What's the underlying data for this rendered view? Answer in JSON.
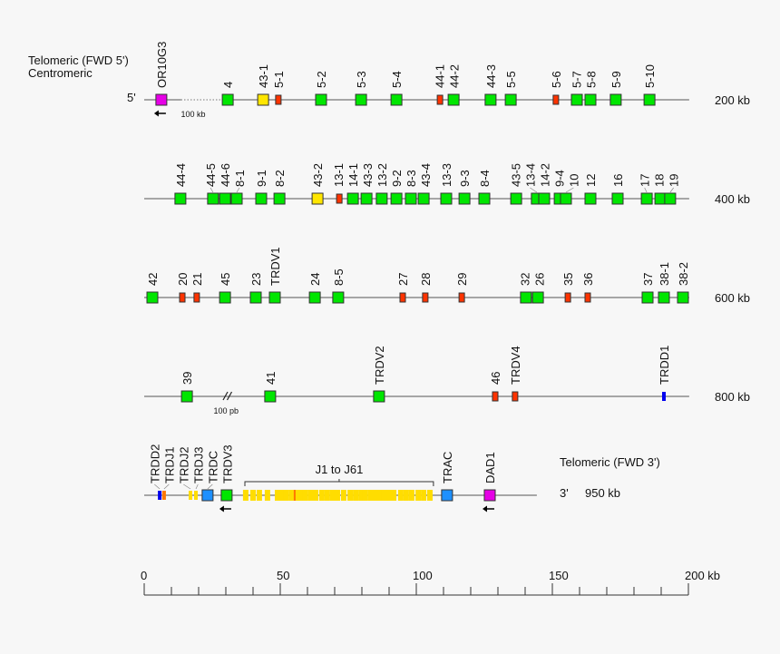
{
  "header": {
    "telomeric_5": "Telomeric (FWD 5')",
    "centromeric": "Centromeric",
    "five_prime": "5'"
  },
  "footer": {
    "telomeric_3": "Telomeric (FWD 3')",
    "three_prime": "3'",
    "end_kb": "950 kb"
  },
  "colors": {
    "V": "#00e600",
    "pseudo": "#ff3300",
    "orf": "#ffe600",
    "other": "#e600e6",
    "C": "#1e90ff",
    "D": "#0000ee",
    "J": "#ffdd00",
    "Jorange": "#ff7700"
  },
  "rows": [
    {
      "kb_label": "200 kb",
      "line_end_kb": 200.3,
      "genes": [
        {
          "label": "OR10G3",
          "pos_kb": 6.3,
          "type": "other",
          "arrow": true
        },
        {
          "label": "4",
          "pos_kb": 30.7,
          "type": "V"
        },
        {
          "label": "43-1",
          "pos_kb": 43.7,
          "type": "orf"
        },
        {
          "label": "5-1",
          "pos_kb": 49.3,
          "type": "pseudo"
        },
        {
          "label": "5-2",
          "pos_kb": 65,
          "type": "V"
        },
        {
          "label": "5-3",
          "pos_kb": 79.7,
          "type": "V"
        },
        {
          "label": "5-4",
          "pos_kb": 92.7,
          "type": "V"
        },
        {
          "label": "44-1",
          "pos_kb": 108.7,
          "type": "pseudo"
        },
        {
          "label": "44-2",
          "pos_kb": 113.7,
          "type": "V"
        },
        {
          "label": "44-3",
          "pos_kb": 127.3,
          "type": "V"
        },
        {
          "label": "5-5",
          "pos_kb": 134.7,
          "type": "V"
        },
        {
          "label": "5-6",
          "pos_kb": 151.3,
          "type": "pseudo"
        },
        {
          "label": "5-7",
          "pos_kb": 159,
          "type": "V"
        },
        {
          "label": "5-8",
          "pos_kb": 164,
          "type": "V"
        },
        {
          "label": "5-9",
          "pos_kb": 173.3,
          "type": "V"
        },
        {
          "label": "5-10",
          "pos_kb": 185.7,
          "type": "V"
        }
      ],
      "gap_note": "100 kb"
    },
    {
      "kb_label": "400 kb",
      "line_end_kb": 200.3,
      "genes": [
        {
          "label": "44-4",
          "pos_kb": 13.3,
          "type": "V"
        },
        {
          "label": "44-5",
          "pos_kb": 25.3,
          "type": "V"
        },
        {
          "label": "44-6",
          "pos_kb": 29.7,
          "type": "V"
        },
        {
          "label": "8-1",
          "pos_kb": 34,
          "type": "V"
        },
        {
          "label": "9-1",
          "pos_kb": 43,
          "type": "V"
        },
        {
          "label": "8-2",
          "pos_kb": 49.7,
          "type": "V"
        },
        {
          "label": "43-2",
          "pos_kb": 63.7,
          "type": "orf"
        },
        {
          "label": "13-1",
          "pos_kb": 71.7,
          "type": "pseudo"
        },
        {
          "label": "14-1",
          "pos_kb": 76.7,
          "type": "V"
        },
        {
          "label": "43-3",
          "pos_kb": 81.7,
          "type": "V"
        },
        {
          "label": "13-2",
          "pos_kb": 87.3,
          "type": "V"
        },
        {
          "label": "9-2",
          "pos_kb": 92.7,
          "type": "V"
        },
        {
          "label": "8-3",
          "pos_kb": 98,
          "type": "V"
        },
        {
          "label": "43-4",
          "pos_kb": 102.7,
          "type": "V"
        },
        {
          "label": "13-3",
          "pos_kb": 111,
          "type": "V"
        },
        {
          "label": "9-3",
          "pos_kb": 117.7,
          "type": "V"
        },
        {
          "label": "8-4",
          "pos_kb": 125,
          "type": "V"
        },
        {
          "label": "43-5",
          "pos_kb": 136.7,
          "type": "V"
        },
        {
          "label": "13-4",
          "pos_kb": 144.3,
          "type": "V"
        },
        {
          "label": "14-2",
          "pos_kb": 147,
          "type": "V"
        },
        {
          "label": "9-4",
          "pos_kb": 152.7,
          "type": "V"
        },
        {
          "label": "10",
          "pos_kb": 155,
          "type": "V"
        },
        {
          "label": "12",
          "pos_kb": 164,
          "type": "V"
        },
        {
          "label": "16",
          "pos_kb": 174,
          "type": "V"
        },
        {
          "label": "17",
          "pos_kb": 184.7,
          "type": "V"
        },
        {
          "label": "18",
          "pos_kb": 189.7,
          "type": "V"
        },
        {
          "label": "19",
          "pos_kb": 193.3,
          "type": "V"
        }
      ]
    },
    {
      "kb_label": "600 kb",
      "line_end_kb": 200.3,
      "genes": [
        {
          "label": "42",
          "pos_kb": 3,
          "type": "V"
        },
        {
          "label": "20",
          "pos_kb": 14,
          "type": "pseudo"
        },
        {
          "label": "21",
          "pos_kb": 19.3,
          "type": "pseudo"
        },
        {
          "label": "45",
          "pos_kb": 29.7,
          "type": "V"
        },
        {
          "label": "23",
          "pos_kb": 41,
          "type": "V"
        },
        {
          "label": "TRDV1",
          "pos_kb": 48,
          "type": "V"
        },
        {
          "label": "24",
          "pos_kb": 62.7,
          "type": "V"
        },
        {
          "label": "8-5",
          "pos_kb": 71.3,
          "type": "V"
        },
        {
          "label": "27",
          "pos_kb": 95,
          "type": "pseudo"
        },
        {
          "label": "28",
          "pos_kb": 103.3,
          "type": "pseudo"
        },
        {
          "label": "29",
          "pos_kb": 116.7,
          "type": "pseudo"
        },
        {
          "label": "32",
          "pos_kb": 140.3,
          "type": "V"
        },
        {
          "label": "26",
          "pos_kb": 144.7,
          "type": "V"
        },
        {
          "label": "35",
          "pos_kb": 155.7,
          "type": "pseudo"
        },
        {
          "label": "36",
          "pos_kb": 163,
          "type": "pseudo"
        },
        {
          "label": "37",
          "pos_kb": 185,
          "type": "V"
        },
        {
          "label": "38-1",
          "pos_kb": 191,
          "type": "V"
        },
        {
          "label": "38-2",
          "pos_kb": 198,
          "type": "V"
        }
      ]
    },
    {
      "kb_label": "800 kb",
      "line_end_kb": 200.3,
      "genes": [
        {
          "label": "39",
          "pos_kb": 15.7,
          "type": "V"
        },
        {
          "label": "41",
          "pos_kb": 46.3,
          "type": "V"
        },
        {
          "label": "TRDV2",
          "pos_kb": 86.3,
          "type": "V"
        },
        {
          "label": "46",
          "pos_kb": 129,
          "type": "pseudo"
        },
        {
          "label": "TRDV4",
          "pos_kb": 136.3,
          "type": "pseudo"
        },
        {
          "label": "TRDD1",
          "pos_kb": 191,
          "type": "D"
        }
      ],
      "break_note": "100 pb"
    },
    {
      "kb_label": "",
      "line_end_kb": 144.3,
      "genes": [
        {
          "label": "TRDD2",
          "pos_kb": 5.7,
          "type": "D"
        },
        {
          "label": "TRDJ1",
          "pos_kb": 7.3,
          "type": "Jorange"
        },
        {
          "label": "TRDJ2",
          "pos_kb": 17,
          "type": "J"
        },
        {
          "label": "TRDJ3",
          "pos_kb": 19,
          "type": "J"
        },
        {
          "label": "TRDC",
          "pos_kb": 23.3,
          "type": "C"
        },
        {
          "label": "TRDV3",
          "pos_kb": 30.3,
          "type": "V",
          "arrow": true
        },
        {
          "label": "TRAC",
          "pos_kb": 111.3,
          "type": "C"
        },
        {
          "label": "DAD1",
          "pos_kb": 127,
          "type": "other",
          "arrow": true
        }
      ],
      "j_cluster": {
        "label": "J1 to J61",
        "start_kb": 37,
        "end_kb": 106.3,
        "segments_kb": [
          37.3,
          40,
          42.3,
          45.3,
          49,
          50.7,
          52.3,
          54.3,
          55.3,
          56.3,
          57.7,
          59.3,
          61.3,
          63,
          65.3,
          67.3,
          69.3,
          71,
          73.3,
          75.7,
          77.7,
          79.7,
          81.3,
          83.3,
          85,
          86.7,
          88.3,
          90,
          91.7,
          94.3,
          96.3,
          98.3,
          100.7,
          102.7,
          105
        ],
        "orange_kb": [
          55.3
        ]
      }
    }
  ],
  "axis": {
    "min": 0,
    "max": 200,
    "minor_step": 10,
    "labels": [
      "0",
      "50",
      "100",
      "150",
      "200 kb"
    ],
    "label_values": [
      0,
      50,
      100,
      150,
      200
    ]
  }
}
